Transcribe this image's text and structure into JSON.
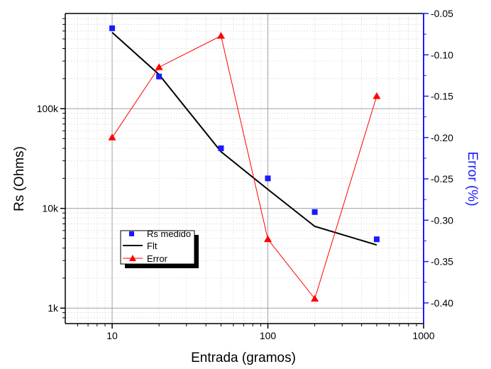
{
  "chart_data": {
    "type": "line",
    "xlabel": "Entrada (gramos)",
    "ylabel": "Rs (Ohms)",
    "y2label": "Error (%)",
    "xscale": "log",
    "yscale": "log",
    "xlim": [
      5,
      1000
    ],
    "ylim": [
      700,
      900000
    ],
    "y2lim": [
      -0.425,
      -0.05
    ],
    "x_ticks": [
      10,
      100,
      1000
    ],
    "y_ticks": [
      1000,
      10000,
      100000
    ],
    "y_tick_labels": [
      "1k",
      "10k",
      "100k"
    ],
    "y2_ticks": [
      -0.05,
      -0.1,
      -0.15,
      -0.2,
      -0.25,
      -0.3,
      -0.35,
      -0.4
    ],
    "y2_tick_labels": [
      "-0.05",
      "-0.10",
      "-0.15",
      "-0.20",
      "-0.25",
      "-0.30",
      "-0.35",
      "-0.40"
    ],
    "grid": true,
    "legend_position": "lower-left",
    "series": [
      {
        "name": "Rs medido",
        "type": "scatter",
        "axis": "left",
        "marker": "square",
        "color": "#1a1aff",
        "x": [
          10,
          20,
          50,
          100,
          200,
          500
        ],
        "y": [
          640000,
          210000,
          40000,
          20000,
          9200,
          4900
        ]
      },
      {
        "name": "Flt",
        "type": "line",
        "axis": "left",
        "color": "#000000",
        "x": [
          10,
          20,
          50,
          100,
          200,
          500
        ],
        "y": [
          580000,
          220000,
          37000,
          15500,
          6600,
          4300
        ]
      },
      {
        "name": "Error",
        "type": "line",
        "axis": "right",
        "marker": "triangle",
        "color": "#ff0000",
        "x": [
          10,
          20,
          50,
          100,
          200,
          500
        ],
        "y": [
          -0.2,
          -0.115,
          -0.077,
          -0.323,
          -0.395,
          -0.15
        ]
      }
    ]
  }
}
